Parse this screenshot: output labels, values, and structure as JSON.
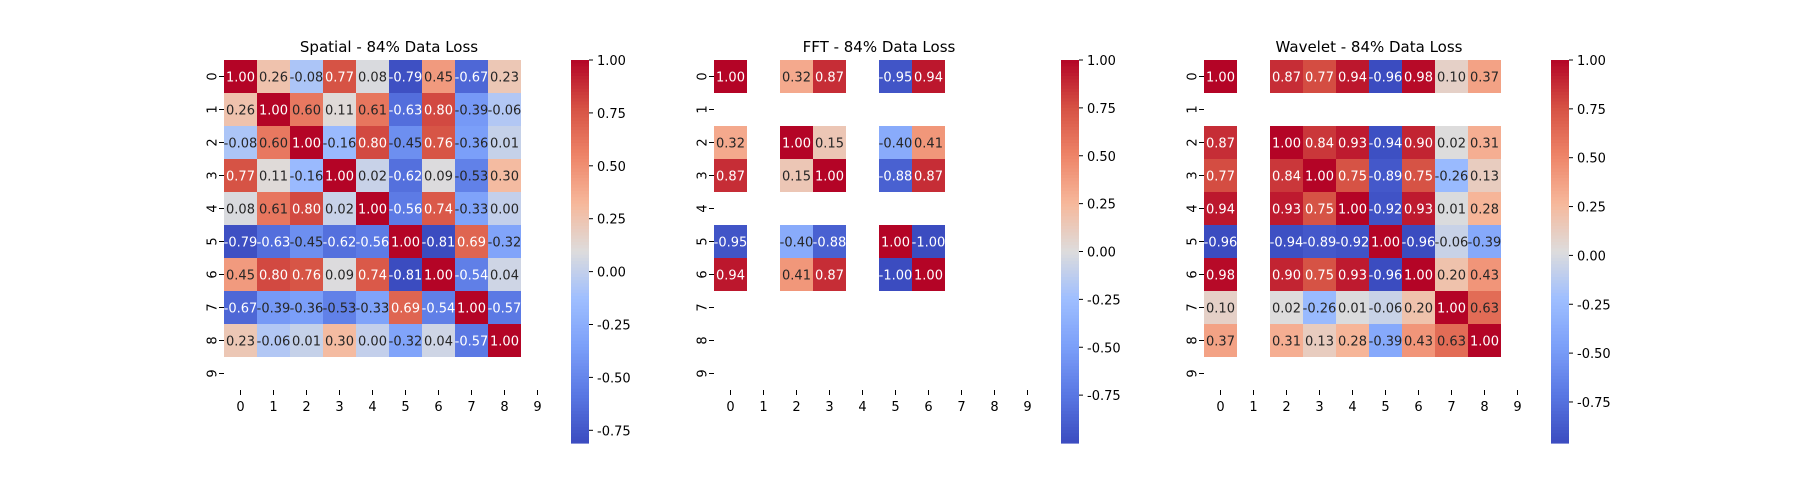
{
  "colormap": {
    "name": "coolwarm",
    "stops": [
      [
        0.0,
        "#3b4cc0"
      ],
      [
        0.125,
        "#5977e3"
      ],
      [
        0.25,
        "#7b9ff9"
      ],
      [
        0.375,
        "#9ebeff"
      ],
      [
        0.5,
        "#dddcdc"
      ],
      [
        0.625,
        "#f6b89b"
      ],
      [
        0.75,
        "#ee8468"
      ],
      [
        0.875,
        "#d65244"
      ],
      [
        1.0,
        "#b40426"
      ]
    ]
  },
  "chart_data": [
    {
      "type": "heatmap",
      "title": "Spatial - 84% Data Loss",
      "x_ticks": [
        "0",
        "1",
        "2",
        "3",
        "4",
        "5",
        "6",
        "7",
        "8",
        "9"
      ],
      "y_ticks": [
        "0",
        "1",
        "2",
        "3",
        "4",
        "5",
        "6",
        "7",
        "8",
        "9"
      ],
      "present": [
        0,
        1,
        2,
        3,
        4,
        5,
        6,
        7,
        8
      ],
      "matrix": [
        [
          1.0,
          0.26,
          -0.08,
          0.77,
          0.08,
          -0.79,
          0.45,
          -0.67,
          0.23
        ],
        [
          0.26,
          1.0,
          0.6,
          0.11,
          0.61,
          -0.63,
          0.8,
          -0.39,
          -0.06
        ],
        [
          -0.08,
          0.6,
          1.0,
          -0.16,
          0.8,
          -0.45,
          0.76,
          -0.36,
          0.01
        ],
        [
          0.77,
          0.11,
          -0.16,
          1.0,
          0.02,
          -0.62,
          0.09,
          -0.53,
          0.3
        ],
        [
          0.08,
          0.61,
          0.8,
          0.02,
          1.0,
          -0.56,
          0.74,
          -0.33,
          -0.0
        ],
        [
          -0.79,
          -0.63,
          -0.45,
          -0.62,
          -0.56,
          1.0,
          -0.81,
          0.69,
          -0.32
        ],
        [
          0.45,
          0.8,
          0.76,
          0.09,
          0.74,
          -0.81,
          1.0,
          -0.54,
          0.04
        ],
        [
          -0.67,
          -0.39,
          -0.36,
          -0.53,
          -0.33,
          0.69,
          -0.54,
          1.0,
          -0.57
        ],
        [
          0.23,
          -0.06,
          0.01,
          0.3,
          -0.0,
          -0.32,
          0.04,
          -0.57,
          1.0
        ]
      ],
      "vmin": -0.81,
      "vmax": 1.0,
      "colorbar_ticks": [
        "1.00",
        "0.75",
        "0.50",
        "0.25",
        "0.00",
        "-0.25",
        "-0.50",
        "-0.75"
      ]
    },
    {
      "type": "heatmap",
      "title": "FFT - 84% Data Loss",
      "x_ticks": [
        "0",
        "1",
        "2",
        "3",
        "4",
        "5",
        "6",
        "7",
        "8",
        "9"
      ],
      "y_ticks": [
        "0",
        "1",
        "2",
        "3",
        "4",
        "5",
        "6",
        "7",
        "8",
        "9"
      ],
      "present": [
        0,
        2,
        3,
        5,
        6
      ],
      "matrix": [
        [
          1.0,
          0.32,
          0.87,
          -0.95,
          0.94
        ],
        [
          0.32,
          1.0,
          0.15,
          -0.4,
          0.41
        ],
        [
          0.87,
          0.15,
          1.0,
          -0.88,
          0.87
        ],
        [
          -0.95,
          -0.4,
          -0.88,
          1.0,
          -1.0
        ],
        [
          0.94,
          0.41,
          0.87,
          -1.0,
          1.0
        ]
      ],
      "vmin": -1.0,
      "vmax": 1.0,
      "colorbar_ticks": [
        "1.00",
        "0.75",
        "0.50",
        "0.25",
        "0.00",
        "-0.25",
        "-0.50",
        "-0.75"
      ]
    },
    {
      "type": "heatmap",
      "title": "Wavelet - 84% Data Loss",
      "x_ticks": [
        "0",
        "1",
        "2",
        "3",
        "4",
        "5",
        "6",
        "7",
        "8",
        "9"
      ],
      "y_ticks": [
        "0",
        "1",
        "2",
        "3",
        "4",
        "5",
        "6",
        "7",
        "8",
        "9"
      ],
      "present": [
        0,
        2,
        3,
        4,
        5,
        6,
        7,
        8
      ],
      "matrix": [
        [
          1.0,
          0.87,
          0.77,
          0.94,
          -0.96,
          0.98,
          0.1,
          0.37
        ],
        [
          0.87,
          1.0,
          0.84,
          0.93,
          -0.94,
          0.9,
          0.02,
          0.31
        ],
        [
          0.77,
          0.84,
          1.0,
          0.75,
          -0.89,
          0.75,
          -0.26,
          0.13
        ],
        [
          0.94,
          0.93,
          0.75,
          1.0,
          -0.92,
          0.93,
          0.01,
          0.28
        ],
        [
          -0.96,
          -0.94,
          -0.89,
          -0.92,
          1.0,
          -0.96,
          -0.06,
          -0.39
        ],
        [
          0.98,
          0.9,
          0.75,
          0.93,
          -0.96,
          1.0,
          0.2,
          0.43
        ],
        [
          0.1,
          0.02,
          -0.26,
          0.01,
          -0.06,
          0.2,
          1.0,
          0.63
        ],
        [
          0.37,
          0.31,
          0.13,
          0.28,
          -0.39,
          0.43,
          0.63,
          1.0
        ]
      ],
      "vmin": -0.96,
      "vmax": 1.0,
      "colorbar_ticks": [
        "1.00",
        "0.75",
        "0.50",
        "0.25",
        "0.00",
        "-0.25",
        "-0.50",
        "-0.75"
      ]
    }
  ]
}
